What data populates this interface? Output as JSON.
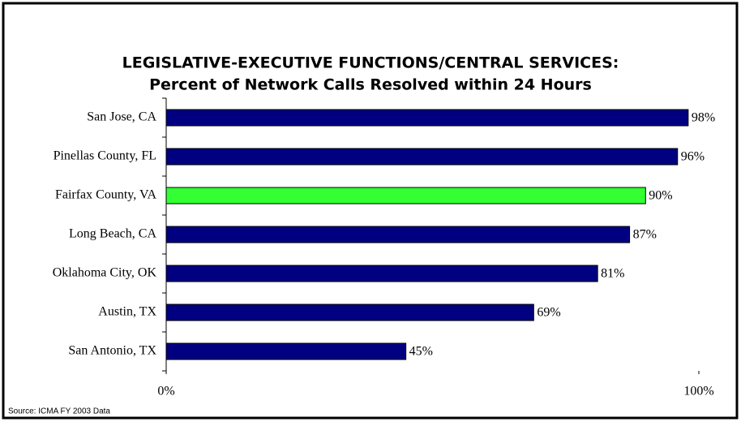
{
  "chart_data": {
    "type": "bar",
    "orientation": "horizontal",
    "title": "LEGISLATIVE-EXECUTIVE FUNCTIONS/CENTRAL SERVICES:",
    "subtitle": "Percent of Network Calls Resolved within 24 Hours",
    "categories": [
      "San Jose, CA",
      "Pinellas County, FL",
      "Fairfax County, VA",
      "Long Beach, CA",
      "Oklahoma City, OK",
      "Austin, TX",
      "San Antonio, TX"
    ],
    "values": [
      98,
      96,
      90,
      87,
      81,
      69,
      45
    ],
    "value_labels": [
      "98%",
      "96%",
      "90%",
      "87%",
      "81%",
      "69%",
      "45%"
    ],
    "colors": [
      "#000080",
      "#000080",
      "#33ff33",
      "#000080",
      "#000080",
      "#000080",
      "#000080"
    ],
    "xlim": [
      0,
      100
    ],
    "xticks": [
      {
        "value": 0,
        "label": "0%"
      },
      {
        "value": 100,
        "label": "100%"
      }
    ],
    "source": "Source: ICMA  FY 2003 Data"
  }
}
